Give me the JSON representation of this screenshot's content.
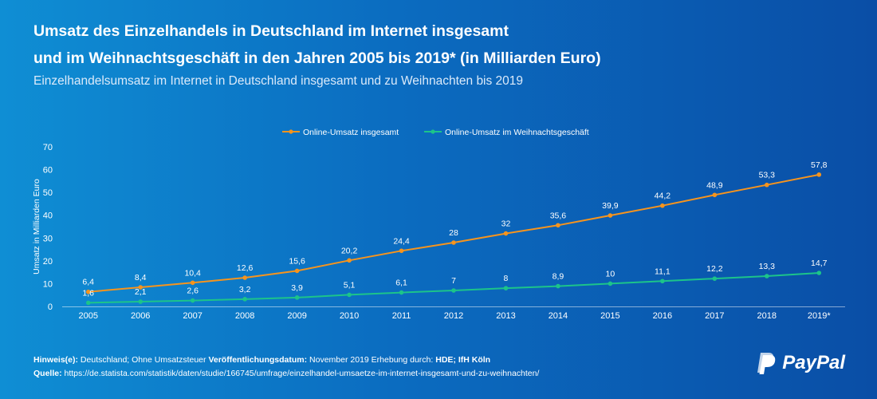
{
  "header": {
    "title_line1": "Umsatz des Einzelhandels in Deutschland im Internet insgesamt",
    "title_line2": "und im Weihnachtsgeschäft in den Jahren 2005 bis 2019* (in Milliarden Euro)",
    "subtitle": "Einzelhandelsumsatz im Internet in Deutschland insgesamt und zu Weihnachten bis 2019"
  },
  "chart_data": {
    "type": "line",
    "categories": [
      "2005",
      "2006",
      "2007",
      "2008",
      "2009",
      "2010",
      "2011",
      "2012",
      "2013",
      "2014",
      "2015",
      "2016",
      "2017",
      "2018",
      "2019*"
    ],
    "series": [
      {
        "name": "Online-Umsatz insgesamt",
        "color": "#f7941d",
        "values": [
          6.4,
          8.4,
          10.4,
          12.6,
          15.6,
          20.2,
          24.4,
          28,
          32,
          35.6,
          39.9,
          44.2,
          48.9,
          53.3,
          57.8
        ],
        "labels": [
          "6,4",
          "8,4",
          "10,4",
          "12,6",
          "15,6",
          "20,2",
          "24,4",
          "28",
          "32",
          "35,6",
          "39,9",
          "44,2",
          "48,9",
          "53,3",
          "57,8"
        ]
      },
      {
        "name": "Online-Umsatz im Weihnachtsgeschäft",
        "color": "#1cc48a",
        "values": [
          1.6,
          2.1,
          2.6,
          3.2,
          3.9,
          5.1,
          6.1,
          7,
          8,
          8.9,
          10,
          11.1,
          12.2,
          13.3,
          14.7
        ],
        "labels": [
          "1,6",
          "2,1",
          "2,6",
          "3,2",
          "3,9",
          "5,1",
          "6,1",
          "7",
          "8",
          "8,9",
          "10",
          "11,1",
          "12,2",
          "13,3",
          "14,7"
        ]
      }
    ],
    "ylabel": "Umsatz in Milliarden Euro",
    "xlabel": "",
    "ylim": [
      0,
      70
    ],
    "yticks": [
      0,
      10,
      20,
      30,
      40,
      50,
      60,
      70
    ],
    "grid": false,
    "legend": "top-center"
  },
  "footer": {
    "note_label": "Hinweis(e):",
    "note_text": " Deutschland; Ohne Umsatzsteuer ",
    "pubdate_label": "Veröffentlichungsdatum:",
    "pubdate_text": " November 2019 Erhebung durch: ",
    "survey_by": "HDE; IfH Köln",
    "source_label": "Quelle:",
    "source_text": " https://de.statista.com/statistik/daten/studie/166745/umfrage/einzelhandel-umsaetze-im-internet-insgesamt-und-zu-weihnachten/"
  },
  "brand": {
    "name": "PayPal",
    "icon": "paypal-logo-icon"
  }
}
